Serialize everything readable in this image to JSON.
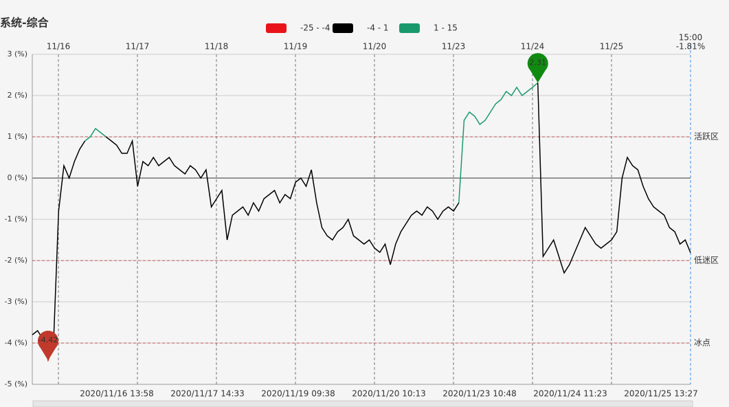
{
  "chart_data": {
    "type": "line",
    "title": "系统-综合",
    "legend": [
      {
        "label": "-25 - -4",
        "min": -25,
        "max": -4,
        "color": "#e8141a"
      },
      {
        "label": "-4 - 1",
        "min": -4,
        "max": 1,
        "color": "#000000"
      },
      {
        "label": "1 - 15",
        "min": 1,
        "max": 15,
        "color": "#1a9a6c"
      }
    ],
    "day_labels": [
      "11/16",
      "11/17",
      "11/18",
      "11/19",
      "11/20",
      "11/23",
      "11/24",
      "11/25"
    ],
    "time_labels": [
      "2020/11/16 13:58",
      "2020/11/17 14:33",
      "2020/11/19 09:38",
      "2020/11/20 10:13",
      "2020/11/23 10:48",
      "2020/11/24 11:23",
      "2020/11/25 13:27"
    ],
    "last_time": "15:00",
    "last_label": "-1.81%",
    "ylim": [
      -5,
      3
    ],
    "yticks": [
      {
        "value": 3,
        "label": "3 (%)"
      },
      {
        "value": 2,
        "label": "2 (%)"
      },
      {
        "value": 1,
        "label": "1 (%)"
      },
      {
        "value": 0,
        "label": "0 (%)"
      },
      {
        "value": -1,
        "label": "-1 (%)"
      },
      {
        "value": -2,
        "label": "-2 (%)"
      },
      {
        "value": -3,
        "label": "-3 (%)"
      },
      {
        "value": -4,
        "label": "-4 (%)"
      },
      {
        "value": -5,
        "label": "-5 (%)"
      }
    ],
    "grid": true,
    "mark_lines": [
      {
        "value": 1,
        "label": "活跃区"
      },
      {
        "value": -2,
        "label": "低迷区"
      },
      {
        "value": -4,
        "label": "冰点"
      }
    ],
    "mark_line_color": "#c0504d",
    "max_color": "#118a11",
    "min_color": "#c0392b",
    "values": [
      -3.8,
      -3.7,
      -3.9,
      -4.42,
      -4.1,
      -0.8,
      0.3,
      0.0,
      0.4,
      0.7,
      0.9,
      1.0,
      1.2,
      1.1,
      1.0,
      0.9,
      0.8,
      0.6,
      0.6,
      0.9,
      -0.2,
      0.4,
      0.3,
      0.5,
      0.3,
      0.4,
      0.5,
      0.3,
      0.2,
      0.1,
      0.3,
      0.2,
      0.0,
      0.2,
      -0.7,
      -0.5,
      -0.3,
      -1.5,
      -0.9,
      -0.8,
      -0.7,
      -0.9,
      -0.6,
      -0.8,
      -0.5,
      -0.4,
      -0.3,
      -0.6,
      -0.4,
      -0.5,
      -0.1,
      0.0,
      -0.2,
      0.2,
      -0.6,
      -1.2,
      -1.4,
      -1.5,
      -1.3,
      -1.2,
      -1.0,
      -1.4,
      -1.5,
      -1.6,
      -1.5,
      -1.7,
      -1.8,
      -1.6,
      -2.1,
      -1.6,
      -1.3,
      -1.1,
      -0.9,
      -0.8,
      -0.9,
      -0.7,
      -0.8,
      -1.0,
      -0.8,
      -0.7,
      -0.8,
      -0.6,
      1.4,
      1.6,
      1.5,
      1.3,
      1.4,
      1.6,
      1.8,
      1.9,
      2.1,
      2.0,
      2.2,
      2.0,
      2.1,
      2.2,
      2.31,
      -1.9,
      -1.7,
      -1.5,
      -1.9,
      -2.3,
      -2.1,
      -1.8,
      -1.5,
      -1.2,
      -1.4,
      -1.6,
      -1.7,
      -1.6,
      -1.5,
      -1.3,
      0.0,
      0.5,
      0.3,
      0.2,
      -0.2,
      -0.5,
      -0.7,
      -0.8,
      -0.9,
      -1.2,
      -1.3,
      -1.6,
      -1.5,
      -1.81
    ]
  }
}
